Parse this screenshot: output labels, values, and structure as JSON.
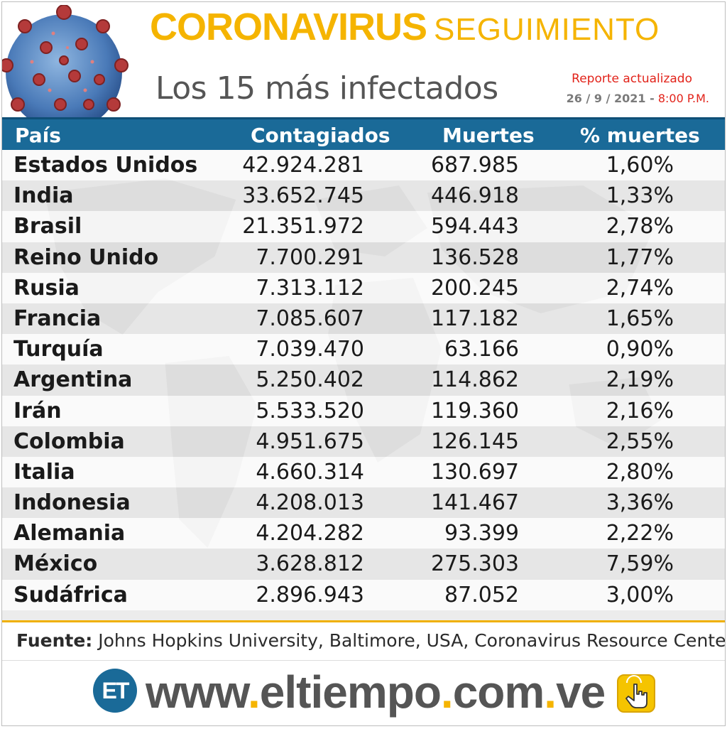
{
  "header": {
    "title_main": "CORONAVIRUS",
    "title_sub": "SEGUIMIENTO",
    "subtitle": "Los 15 más infectados",
    "report_label": "Reporte actualizado",
    "report_date": "26 / 9 / 2021 -",
    "report_time": "8:00 P.M."
  },
  "table": {
    "headers": {
      "country": "País",
      "cases": "Contagiados",
      "deaths": "Muertes",
      "pct": "% muertes"
    },
    "rows": [
      {
        "country": "Estados Unidos",
        "cases": "42.924.281",
        "deaths": "687.985",
        "pct": "1,60%"
      },
      {
        "country": "India",
        "cases": "33.652.745",
        "deaths": "446.918",
        "pct": "1,33%"
      },
      {
        "country": "Brasil",
        "cases": "21.351.972",
        "deaths": "594.443",
        "pct": "2,78%"
      },
      {
        "country": "Reino Unido",
        "cases": "7.700.291",
        "deaths": "136.528",
        "pct": "1,77%"
      },
      {
        "country": "Rusia",
        "cases": "7.313.112",
        "deaths": "200.245",
        "pct": "2,74%"
      },
      {
        "country": "Francia",
        "cases": "7.085.607",
        "deaths": "117.182",
        "pct": "1,65%"
      },
      {
        "country": "Turquía",
        "cases": "7.039.470",
        "deaths": "63.166",
        "pct": "0,90%"
      },
      {
        "country": "Argentina",
        "cases": "5.250.402",
        "deaths": "114.862",
        "pct": "2,19%"
      },
      {
        "country": "Irán",
        "cases": "5.533.520",
        "deaths": "119.360",
        "pct": "2,16%"
      },
      {
        "country": "Colombia",
        "cases": "4.951.675",
        "deaths": "126.145",
        "pct": "2,55%"
      },
      {
        "country": "Italia",
        "cases": "4.660.314",
        "deaths": "130.697",
        "pct": "2,80%"
      },
      {
        "country": "Indonesia",
        "cases": "4.208.013",
        "deaths": "141.467",
        "pct": "3,36%"
      },
      {
        "country": "Alemania",
        "cases": "4.204.282",
        "deaths": "93.399",
        "pct": "2,22%"
      },
      {
        "country": "México",
        "cases": "3.628.812",
        "deaths": "275.303",
        "pct": "7,59%"
      },
      {
        "country": "Sudáfrica",
        "cases": "2.896.943",
        "deaths": "87.052",
        "pct": "3,00%"
      }
    ]
  },
  "footer": {
    "source_label": "Fuente:",
    "source_text": "Johns Hopkins University, Baltimore, USA, Coronavirus Resource Center",
    "logo_text": "ET",
    "url_parts": [
      "www",
      ".",
      "eltiempo",
      ".",
      "com",
      ".",
      "ve"
    ]
  },
  "colors": {
    "title_yellow": "#f5b400",
    "header_blue": "#1a6a98",
    "report_red": "#e2231a",
    "subtitle_gray": "#555555"
  },
  "icons": {
    "virus": "coronavirus-illustration",
    "world_map": "world-map-watermark",
    "click": "hand-pointer-icon"
  }
}
